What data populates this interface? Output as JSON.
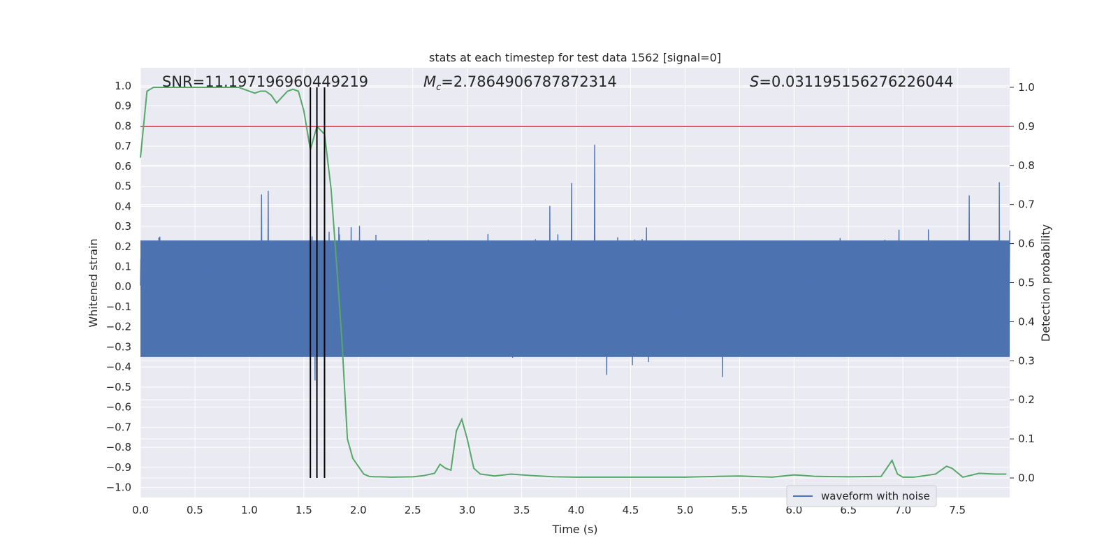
{
  "chart_data": {
    "type": "line",
    "title": "stats at each timestep for test data 1562 [signal=0]",
    "xlabel": "Time (s)",
    "ylabel": "Whitened strain",
    "y2label": "Detection probability",
    "xlim": [
      0,
      7.98
    ],
    "ylim": [
      -1.05,
      1.09
    ],
    "y2lim": [
      -0.05,
      1.05
    ],
    "xticks": [
      "0.0",
      "0.5",
      "1.0",
      "1.5",
      "2.0",
      "2.5",
      "3.0",
      "3.5",
      "4.0",
      "4.5",
      "5.0",
      "5.5",
      "6.0",
      "6.5",
      "7.0",
      "7.5"
    ],
    "xtick_values": [
      0,
      0.5,
      1.0,
      1.5,
      2.0,
      2.5,
      3.0,
      3.5,
      4.0,
      4.5,
      5.0,
      5.5,
      6.0,
      6.5,
      7.0,
      7.5
    ],
    "yticks": [
      "1.0",
      "0.9",
      "0.8",
      "0.7",
      "0.6",
      "0.5",
      "0.4",
      "0.3",
      "0.2",
      "0.1",
      "0.0",
      "−0.1",
      "−0.2",
      "−0.3",
      "−0.4",
      "−0.5",
      "−0.6",
      "−0.7",
      "−0.8",
      "−0.9",
      "−1.0"
    ],
    "ytick_values": [
      1.0,
      0.9,
      0.8,
      0.7,
      0.6,
      0.5,
      0.4,
      0.3,
      0.2,
      0.1,
      0.0,
      -0.1,
      -0.2,
      -0.3,
      -0.4,
      -0.5,
      -0.6,
      -0.7,
      -0.8,
      -0.9,
      -1.0
    ],
    "y2ticks": [
      "1.0",
      "0.9",
      "0.8",
      "0.7",
      "0.6",
      "0.5",
      "0.4",
      "0.3",
      "0.2",
      "0.1",
      "0.0"
    ],
    "y2tick_values": [
      1.0,
      0.9,
      0.8,
      0.7,
      0.6,
      0.5,
      0.4,
      0.3,
      0.2,
      0.1,
      0.0
    ],
    "annotations": {
      "snr": "SNR=11.197196960449219",
      "mc_symbol": "M",
      "mc_sub": "c",
      "mc_value": "=2.7864906787872314",
      "s_symbol": "S",
      "s_value": "=0.031195156276226044"
    },
    "legend": {
      "label": "waveform with noise",
      "location": "lower-right"
    },
    "threshold": {
      "value": 0.9,
      "color": "#c44e52"
    },
    "vertical_lines": [
      1.56,
      1.62,
      1.69
    ],
    "detection_probability": {
      "name": "Detection probability",
      "color": "#55a868",
      "x": [
        0.0,
        0.06,
        0.12,
        0.2,
        0.3,
        0.5,
        0.7,
        0.8,
        0.9,
        1.0,
        1.05,
        1.1,
        1.15,
        1.2,
        1.25,
        1.3,
        1.35,
        1.4,
        1.45,
        1.5,
        1.56,
        1.62,
        1.69,
        1.75,
        1.8,
        1.85,
        1.9,
        1.95,
        2.0,
        2.05,
        2.1,
        2.15,
        2.2,
        2.3,
        2.5,
        2.6,
        2.7,
        2.75,
        2.8,
        2.85,
        2.9,
        2.95,
        3.0,
        3.06,
        3.12,
        3.18,
        3.25,
        3.4,
        3.6,
        3.8,
        4.0,
        4.2,
        4.5,
        5.0,
        5.3,
        5.5,
        5.8,
        6.0,
        6.2,
        6.5,
        6.8,
        6.9,
        6.95,
        7.0,
        7.1,
        7.3,
        7.4,
        7.45,
        7.55,
        7.7,
        7.85,
        7.95
      ],
      "y": [
        0.82,
        0.99,
        1.0,
        1.0,
        1.0,
        1.0,
        1.0,
        1.0,
        1.0,
        0.99,
        0.985,
        0.99,
        0.99,
        0.98,
        0.96,
        0.975,
        0.99,
        0.995,
        0.99,
        0.94,
        0.84,
        0.9,
        0.88,
        0.74,
        0.55,
        0.35,
        0.1,
        0.05,
        0.03,
        0.01,
        0.004,
        0.003,
        0.003,
        0.002,
        0.003,
        0.006,
        0.012,
        0.035,
        0.025,
        0.02,
        0.12,
        0.15,
        0.1,
        0.025,
        0.01,
        0.008,
        0.005,
        0.01,
        0.006,
        0.003,
        0.002,
        0.002,
        0.002,
        0.002,
        0.004,
        0.005,
        0.002,
        0.008,
        0.004,
        0.003,
        0.004,
        0.045,
        0.01,
        0.002,
        0.002,
        0.01,
        0.03,
        0.025,
        0.002,
        0.012,
        0.01,
        0.01
      ]
    },
    "waveform": {
      "name": "waveform with noise",
      "color": "#4c72b0",
      "description": "whitened strain noise series"
    }
  }
}
